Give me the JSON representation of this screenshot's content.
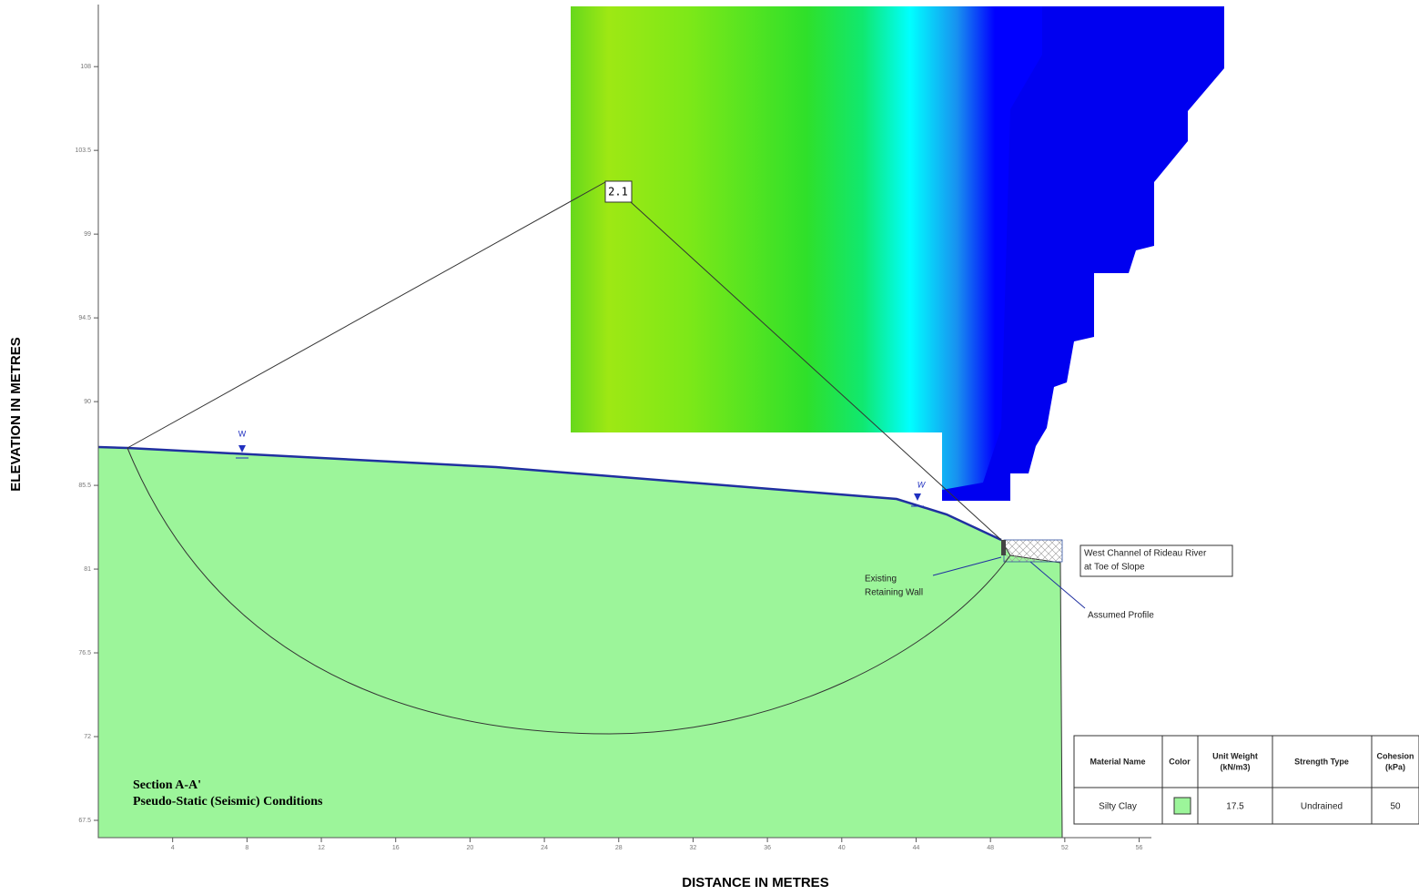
{
  "axes": {
    "x_label": "DISTANCE IN METRES",
    "y_label": "ELEVATION IN METRES",
    "xticks": [
      4,
      8,
      12,
      16,
      20,
      24,
      28,
      32,
      36,
      40,
      44,
      48,
      52,
      56
    ],
    "yticks": [
      67.5,
      72,
      76.5,
      81,
      85.5,
      90,
      94.5,
      99,
      103.5,
      108
    ]
  },
  "factor_of_safety": 2.1,
  "annotations": {
    "water_marker_1": "W",
    "water_marker_2": "W",
    "retaining_wall": [
      "Existing",
      "Retaining Wall"
    ],
    "river": [
      "West Channel of Rideau River",
      "at Toe of Slope"
    ],
    "assumed_profile": "Assumed Profile"
  },
  "section": {
    "title": "Section A-A'",
    "subtitle": "Pseudo-Static (Seismic) Conditions"
  },
  "table": {
    "header": [
      [
        "Material Name"
      ],
      [
        "Color"
      ],
      [
        "Unit Weight",
        "(kN/m3)"
      ],
      [
        "Strength Type"
      ],
      [
        "Cohesion",
        "(kPa)"
      ]
    ],
    "rows": [
      [
        "Silty Clay",
        17.5,
        "Undrained",
        50
      ]
    ]
  }
}
